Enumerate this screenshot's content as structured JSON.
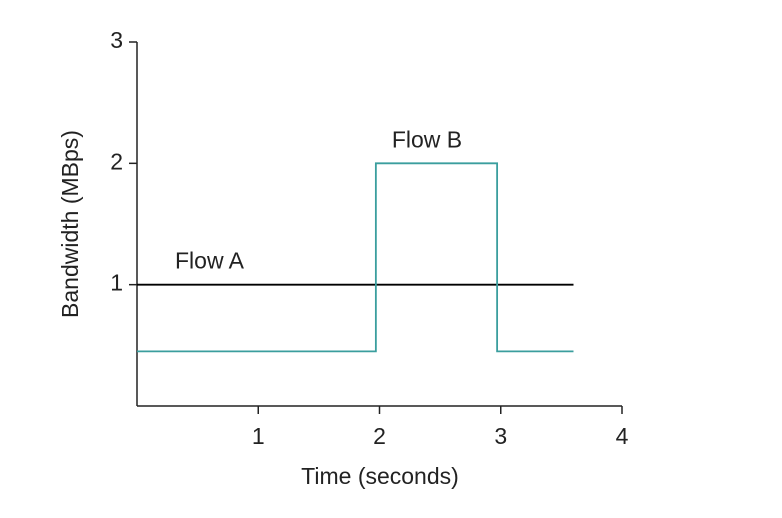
{
  "chart_data": {
    "type": "line",
    "xlabel": "Time (seconds)",
    "ylabel": "Bandwidth (MBps)",
    "xlim": [
      0,
      4
    ],
    "xticks": [
      1,
      2,
      3,
      4
    ],
    "ylim": [
      0,
      3
    ],
    "yticks": [
      1,
      2,
      3
    ],
    "grid": false,
    "series": [
      {
        "name": "Flow A",
        "color": "#000000",
        "x": [
          0,
          3.6
        ],
        "values": [
          1,
          1
        ]
      },
      {
        "name": "Flow B",
        "color": "#3a9e9e",
        "x": [
          0,
          1.97,
          1.97,
          2.97,
          2.97,
          3.6
        ],
        "values": [
          0.45,
          0.45,
          2,
          2,
          0.45,
          0.45
        ]
      }
    ]
  }
}
